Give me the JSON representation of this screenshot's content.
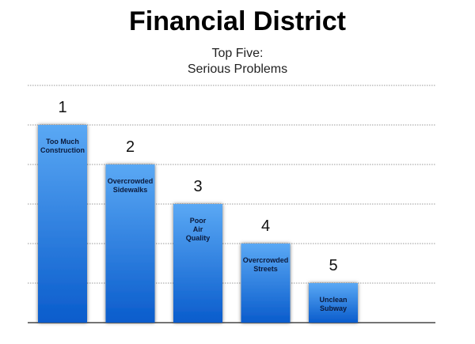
{
  "chart_data": {
    "type": "bar",
    "title": "Financial District",
    "subtitle": "Top Five:\nSerious Problems",
    "categories": [
      "Too Much\nConstruction",
      "Overcrowded\nSidewalks",
      "Poor\nAir\nQuality",
      "Overcrowded\nStreets",
      "Unclean\nSubway"
    ],
    "values": [
      5,
      4,
      3,
      2,
      1
    ],
    "ranks": [
      1,
      2,
      3,
      4,
      5
    ],
    "color": "#1a72e0",
    "ylim": [
      0,
      6
    ],
    "yticks": [
      0,
      1,
      2,
      3,
      4,
      5,
      6
    ],
    "grid": true
  }
}
